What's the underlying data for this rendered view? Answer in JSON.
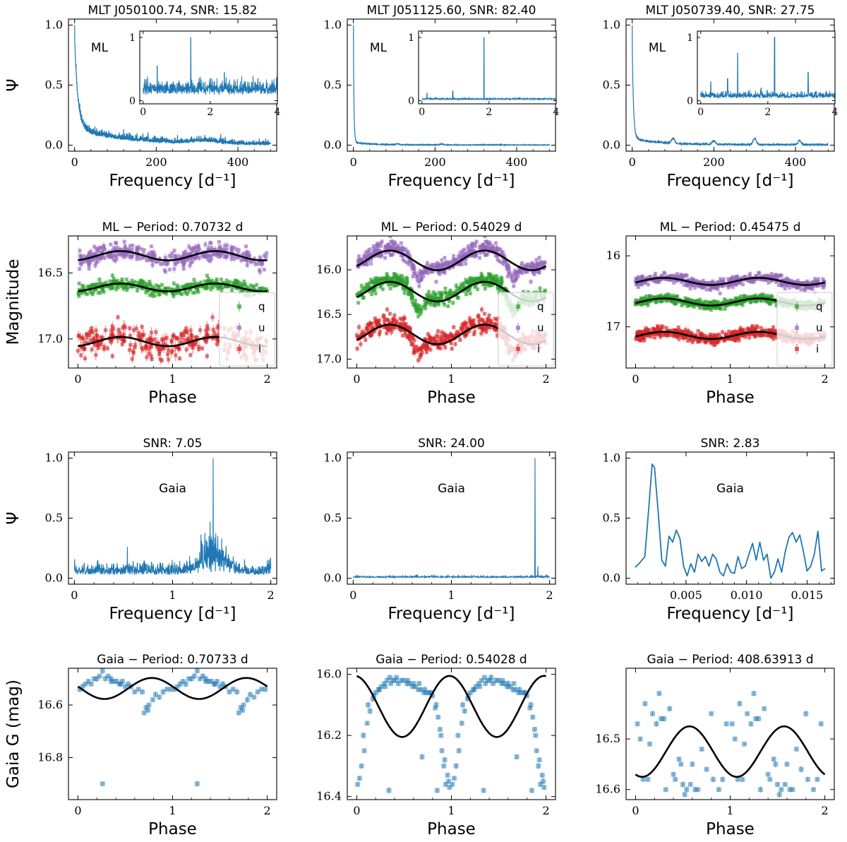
{
  "colors": {
    "blue": "#1f77b4",
    "green": "#2ca02c",
    "purple": "#9467bd",
    "red": "#d62728",
    "fit": "#000000"
  },
  "chart_data": [
    {
      "id": "p00",
      "type": "line",
      "title": "MLT J050100.74, SNR: 15.82",
      "xlabel": "Frequency [d⁻¹]",
      "ylabel": "Ψ",
      "annotation": "ML",
      "xlim": [
        -15,
        495
      ],
      "ylim": [
        -0.05,
        1.05
      ],
      "xticks": [
        0,
        200,
        400
      ],
      "yticks": [
        0.0,
        0.5,
        1.0
      ],
      "ytick_labels": [
        "0.0",
        "0.5",
        "1.0"
      ],
      "profile": {
        "kind": "decay",
        "amp": 0.75,
        "tau": 8,
        "amp2": 0.12,
        "tau2": 120,
        "bumps": [
          [
            320,
            0.02,
            30
          ]
        ],
        "noise": 0.035,
        "xmax": 480
      },
      "inset": {
        "xlim": [
          -0.1,
          4.0
        ],
        "ylim": [
          -0.05,
          1.1
        ],
        "xticks": [
          0,
          2,
          4
        ],
        "yticks": [
          0,
          1
        ],
        "ytick_labels": [
          "0",
          "1"
        ],
        "peaks": [
          [
            0.42,
            0.55
          ],
          [
            1.42,
            1.0
          ],
          [
            2.42,
            0.45
          ],
          [
            3.42,
            0.35
          ],
          [
            0.9,
            0.3
          ],
          [
            2.0,
            0.35
          ]
        ],
        "base": 0.12,
        "noise": 0.18
      }
    },
    {
      "id": "p01",
      "type": "line",
      "title": "MLT J051125.60, SNR: 82.40",
      "xlabel": "Frequency [d⁻¹]",
      "ylabel": "",
      "annotation": "ML",
      "xlim": [
        -15,
        495
      ],
      "ylim": [
        -0.05,
        1.05
      ],
      "xticks": [
        0,
        200,
        400
      ],
      "yticks": [
        0.0,
        0.5,
        1.0
      ],
      "ytick_labels": [
        "0.0",
        "0.5",
        "1.0"
      ],
      "profile": {
        "kind": "decay",
        "amp": 0.82,
        "tau": 1.5,
        "amp2": 0.02,
        "tau2": 40,
        "bumps": [
          [
            108,
            0.008,
            4
          ],
          [
            216,
            0.006,
            4
          ]
        ],
        "noise": 0.004,
        "xmax": 480
      },
      "inset": {
        "xlim": [
          -0.1,
          4.0
        ],
        "ylim": [
          -0.05,
          1.1
        ],
        "xticks": [
          0,
          2,
          4
        ],
        "yticks": [
          0,
          1
        ],
        "ytick_labels": [
          "0",
          "1"
        ],
        "peaks": [
          [
            1.85,
            1.0
          ],
          [
            0.92,
            0.15
          ],
          [
            0.15,
            0.12
          ],
          [
            2.9,
            0.05
          ]
        ],
        "base": 0.02,
        "noise": 0.02
      }
    },
    {
      "id": "p02",
      "type": "line",
      "title": "MLT J050739.40, SNR: 27.75",
      "xlabel": "Frequency [d⁻¹]",
      "ylabel": "",
      "annotation": "ML",
      "xlim": [
        -15,
        495
      ],
      "ylim": [
        -0.05,
        1.05
      ],
      "xticks": [
        0,
        200,
        400
      ],
      "yticks": [
        0.0,
        0.5,
        1.0
      ],
      "ytick_labels": [
        "0.0",
        "0.5",
        "1.0"
      ],
      "profile": {
        "kind": "decay",
        "amp": 0.8,
        "tau": 3,
        "amp2": 0.05,
        "tau2": 60,
        "bumps": [
          [
            100,
            0.04,
            4
          ],
          [
            200,
            0.03,
            4
          ],
          [
            300,
            0.05,
            4
          ],
          [
            410,
            0.03,
            4
          ]
        ],
        "noise": 0.01,
        "xmax": 480
      },
      "inset": {
        "xlim": [
          -0.1,
          4.0
        ],
        "ylim": [
          -0.05,
          1.1
        ],
        "xticks": [
          0,
          2,
          4
        ],
        "yticks": [
          0,
          1
        ],
        "ytick_labels": [
          "0",
          "1"
        ],
        "peaks": [
          [
            2.2,
            1.0
          ],
          [
            1.1,
            0.75
          ],
          [
            3.2,
            0.45
          ],
          [
            0.8,
            0.35
          ],
          [
            0.3,
            0.3
          ],
          [
            1.8,
            0.2
          ]
        ],
        "base": 0.05,
        "noise": 0.08
      }
    },
    {
      "id": "p10",
      "type": "scatter",
      "title": "ML − Period: 0.70732 d",
      "xlabel": "Phase",
      "ylabel": "Magnitude",
      "xlim": [
        -0.1,
        2.1
      ],
      "ylim": [
        17.22,
        16.22
      ],
      "inverted": true,
      "xticks": [
        0,
        1,
        2
      ],
      "yticks": [
        16.5,
        17.0
      ],
      "ytick_labels": [
        "16.5",
        "17.0"
      ],
      "legend": [
        "q",
        "u",
        "i"
      ],
      "legend_loc": "lower right",
      "series": [
        {
          "name": "q",
          "color": "green",
          "mean": 16.61,
          "amp": 0.03,
          "phase0": 0.45,
          "scatter": 0.025,
          "n": 180,
          "err": 0.015
        },
        {
          "name": "u",
          "color": "purple",
          "mean": 16.37,
          "amp": 0.035,
          "phase0": 0.45,
          "scatter": 0.035,
          "n": 180,
          "err": 0.02
        },
        {
          "name": "i",
          "color": "red",
          "mean": 17.02,
          "amp": 0.035,
          "phase0": 0.45,
          "scatter": 0.05,
          "n": 150,
          "err": 0.03
        }
      ]
    },
    {
      "id": "p11",
      "type": "scatter",
      "title": "ML − Period: 0.54029 d",
      "xlabel": "Phase",
      "ylabel": "",
      "xlim": [
        -0.1,
        2.1
      ],
      "ylim": [
        17.1,
        15.62
      ],
      "inverted": true,
      "xticks": [
        0,
        1,
        2
      ],
      "yticks": [
        16.0,
        16.5,
        17.0
      ],
      "ytick_labels": [
        "16.0",
        "16.5",
        "17.0"
      ],
      "legend": [
        "q",
        "u",
        "i"
      ],
      "legend_loc": "lower right",
      "series": [
        {
          "name": "q",
          "color": "green",
          "mean": 16.22,
          "amp": 0.11,
          "phase0": 0.35,
          "scatter": 0.04,
          "n": 260,
          "err": 0.02,
          "dip": 0.2
        },
        {
          "name": "u",
          "color": "purple",
          "mean": 15.87,
          "amp": 0.11,
          "phase0": 0.35,
          "scatter": 0.04,
          "n": 260,
          "err": 0.02,
          "dip": 0.2
        },
        {
          "name": "i",
          "color": "red",
          "mean": 16.7,
          "amp": 0.11,
          "phase0": 0.35,
          "scatter": 0.05,
          "n": 240,
          "err": 0.03,
          "dip": 0.2
        }
      ]
    },
    {
      "id": "p12",
      "type": "scatter",
      "title": "ML − Period: 0.45475 d",
      "xlabel": "Phase",
      "ylabel": "",
      "xlim": [
        -0.1,
        2.1
      ],
      "ylim": [
        17.58,
        15.72
      ],
      "inverted": true,
      "xticks": [
        0,
        1,
        2
      ],
      "yticks": [
        16,
        17
      ],
      "ytick_labels": [
        "16",
        "17"
      ],
      "legend": [
        "q",
        "u",
        "i"
      ],
      "legend_loc": "lower right",
      "series": [
        {
          "name": "q",
          "color": "green",
          "mean": 16.65,
          "amp": 0.05,
          "phase0": 0.3,
          "scatter": 0.03,
          "n": 280,
          "err": 0.02
        },
        {
          "name": "u",
          "color": "purple",
          "mean": 16.36,
          "amp": 0.05,
          "phase0": 0.3,
          "scatter": 0.03,
          "n": 280,
          "err": 0.02
        },
        {
          "name": "i",
          "color": "red",
          "mean": 17.12,
          "amp": 0.05,
          "phase0": 0.3,
          "scatter": 0.04,
          "n": 260,
          "err": 0.03
        }
      ]
    },
    {
      "id": "p20",
      "type": "line",
      "title": "SNR: 7.05",
      "xlabel": "Frequency [d⁻¹]",
      "ylabel": "Ψ",
      "annotation": "Gaia",
      "xlim": [
        -0.06,
        2.06
      ],
      "ylim": [
        -0.05,
        1.05
      ],
      "xticks": [
        0,
        1,
        2
      ],
      "yticks": [
        0.0,
        0.5,
        1.0
      ],
      "ytick_labels": [
        "0.0",
        "0.5",
        "1.0"
      ],
      "profile": {
        "kind": "noisy",
        "xmin": 0,
        "xmax": 2,
        "base": 0.03,
        "noise": 0.08,
        "n": 900,
        "peaks": [
          [
            1.414,
            1.0
          ],
          [
            1.4,
            0.32
          ],
          [
            1.43,
            0.28
          ],
          [
            1.37,
            0.22
          ],
          [
            1.46,
            0.2
          ]
        ],
        "envelope": [
          [
            1.4,
            0.12,
            0.4
          ]
        ]
      }
    },
    {
      "id": "p21",
      "type": "line",
      "title": "SNR: 24.00",
      "xlabel": "Frequency [d⁻¹]",
      "ylabel": "",
      "annotation": "Gaia",
      "xlim": [
        -0.06,
        2.06
      ],
      "ylim": [
        -0.05,
        1.05
      ],
      "xticks": [
        0,
        1,
        2
      ],
      "yticks": [
        0.0,
        0.5,
        1.0
      ],
      "ytick_labels": [
        "0.0",
        "0.5",
        "1.0"
      ],
      "profile": {
        "kind": "noisy",
        "xmin": 0,
        "xmax": 2,
        "base": 0.005,
        "noise": 0.012,
        "n": 700,
        "peaks": [
          [
            1.851,
            1.0
          ],
          [
            1.88,
            0.1
          ],
          [
            1.82,
            0.03
          ]
        ]
      }
    },
    {
      "id": "p22",
      "type": "line",
      "title": "SNR: 2.83",
      "xlabel": "Frequency [d⁻¹]",
      "ylabel": "",
      "annotation": "Gaia",
      "xlim": [
        5e-05,
        0.01725
      ],
      "ylim": [
        -0.05,
        1.05
      ],
      "xticks": [
        0.005,
        0.01,
        0.015
      ],
      "xtick_labels": [
        "0.005",
        "0.010",
        "0.015"
      ],
      "yticks": [
        0.0,
        0.5,
        1.0
      ],
      "ytick_labels": [
        "0.0",
        "0.5",
        "1.0"
      ],
      "x": [
        0.0008,
        0.0012,
        0.0016,
        0.0019,
        0.0022,
        0.0024,
        0.0027,
        0.003,
        0.0033,
        0.0036,
        0.0039,
        0.0042,
        0.0045,
        0.0048,
        0.0051,
        0.0054,
        0.0057,
        0.006,
        0.0063,
        0.0066,
        0.0069,
        0.0072,
        0.0075,
        0.0078,
        0.0081,
        0.0084,
        0.0087,
        0.009,
        0.0093,
        0.0096,
        0.0099,
        0.0102,
        0.0105,
        0.0108,
        0.0111,
        0.0114,
        0.0117,
        0.012,
        0.0123,
        0.0126,
        0.0129,
        0.0132,
        0.0135,
        0.0138,
        0.0141,
        0.0144,
        0.0147,
        0.015,
        0.0153,
        0.0156,
        0.0159,
        0.0162,
        0.0165
      ],
      "y": [
        0.09,
        0.13,
        0.18,
        0.55,
        0.95,
        0.92,
        0.55,
        0.15,
        0.1,
        0.35,
        0.3,
        0.4,
        0.33,
        0.1,
        0.02,
        0.12,
        0.05,
        0.2,
        0.14,
        0.18,
        0.1,
        0.2,
        0.16,
        0.05,
        0.02,
        0.12,
        0.05,
        0.04,
        0.18,
        0.08,
        0.1,
        0.2,
        0.29,
        0.15,
        0.3,
        0.15,
        0.2,
        0.0,
        0.05,
        0.16,
        0.05,
        0.22,
        0.34,
        0.38,
        0.3,
        0.36,
        0.22,
        0.06,
        0.1,
        0.2,
        0.39,
        0.06,
        0.08
      ]
    },
    {
      "id": "p30",
      "type": "scatter",
      "title": "Gaia − Period: 0.70733 d",
      "xlabel": "Phase",
      "ylabel": "Gaia G (mag)",
      "xlim": [
        -0.1,
        2.1
      ],
      "ylim": [
        16.96,
        16.46
      ],
      "inverted": true,
      "xticks": [
        0,
        1,
        2
      ],
      "yticks": [
        16.6,
        16.8
      ],
      "ytick_labels": [
        "16.6",
        "16.8"
      ],
      "fit": {
        "mean": 16.537,
        "amp": 0.04,
        "peak_phase": 0.28
      },
      "phase": [
        0.02,
        0.05,
        0.08,
        0.11,
        0.14,
        0.17,
        0.2,
        0.23,
        0.26,
        0.29,
        0.32,
        0.35,
        0.38,
        0.41,
        0.44,
        0.47,
        0.5,
        0.53,
        0.56,
        0.6,
        0.64,
        0.68,
        0.72,
        0.75,
        0.79,
        0.82,
        0.86,
        0.9,
        0.94,
        0.98,
        0.26,
        0.7,
        0.74,
        0.35,
        0.45
      ],
      "mag": [
        16.54,
        16.53,
        16.52,
        16.51,
        16.52,
        16.5,
        16.5,
        16.49,
        16.47,
        16.5,
        16.49,
        16.5,
        16.51,
        16.51,
        16.52,
        16.51,
        16.53,
        16.52,
        16.53,
        16.55,
        16.54,
        16.55,
        16.61,
        16.6,
        16.58,
        16.56,
        16.57,
        16.55,
        16.54,
        16.54,
        16.9,
        16.63,
        16.62,
        16.51,
        16.52
      ]
    },
    {
      "id": "p31",
      "type": "scatter",
      "title": "Gaia − Period: 0.54028 d",
      "xlabel": "Phase",
      "ylabel": "",
      "xlim": [
        -0.1,
        2.1
      ],
      "ylim": [
        16.41,
        15.98
      ],
      "inverted": true,
      "xticks": [
        0,
        1,
        2
      ],
      "yticks": [
        16.0,
        16.2,
        16.4
      ],
      "ytick_labels": [
        "16.0",
        "16.2",
        "16.4"
      ],
      "fit": {
        "mean": 16.105,
        "amp": 0.1,
        "peak_phase": 0.48
      },
      "phase": [
        0.01,
        0.03,
        0.05,
        0.08,
        0.11,
        0.14,
        0.17,
        0.2,
        0.23,
        0.26,
        0.29,
        0.32,
        0.35,
        0.38,
        0.41,
        0.44,
        0.47,
        0.5,
        0.53,
        0.56,
        0.59,
        0.62,
        0.65,
        0.68,
        0.71,
        0.74,
        0.77,
        0.8,
        0.83,
        0.86,
        0.88,
        0.9,
        0.92,
        0.94,
        0.96,
        0.98,
        0.07,
        0.12,
        0.18,
        0.24,
        0.3,
        0.36,
        0.42,
        0.54,
        0.6,
        0.66,
        0.72,
        0.78,
        0.84,
        0.89,
        0.93,
        0.97,
        0.34,
        0.69,
        0.85
      ],
      "mag": [
        16.36,
        16.34,
        16.3,
        16.25,
        16.16,
        16.12,
        16.08,
        16.06,
        16.05,
        16.04,
        16.03,
        16.02,
        16.01,
        16.02,
        16.02,
        16.03,
        16.02,
        16.02,
        16.03,
        16.03,
        16.04,
        16.04,
        16.05,
        16.05,
        16.06,
        16.06,
        16.06,
        16.07,
        16.11,
        16.14,
        16.18,
        16.25,
        16.3,
        16.36,
        16.33,
        16.37,
        16.2,
        16.1,
        16.07,
        16.05,
        16.04,
        16.03,
        16.01,
        16.02,
        16.03,
        16.03,
        16.05,
        16.06,
        16.1,
        16.2,
        16.28,
        16.35,
        16.38,
        16.27,
        16.38
      ]
    },
    {
      "id": "p32",
      "type": "scatter",
      "title": "Gaia − Period: 408.63913 d",
      "xlabel": "Phase",
      "ylabel": "",
      "xlim": [
        -0.1,
        2.1
      ],
      "ylim": [
        16.62,
        16.36
      ],
      "inverted": true,
      "xticks": [
        0,
        1,
        2
      ],
      "yticks": [
        16.5,
        16.6
      ],
      "ytick_labels": [
        "16.5",
        "16.6"
      ],
      "fit": {
        "mean": 16.525,
        "amp": 0.05,
        "peak_phase": 0.07
      },
      "phase": [
        0.02,
        0.05,
        0.08,
        0.1,
        0.13,
        0.15,
        0.18,
        0.22,
        0.25,
        0.27,
        0.3,
        0.32,
        0.36,
        0.4,
        0.42,
        0.46,
        0.48,
        0.5,
        0.52,
        0.54,
        0.58,
        0.6,
        0.63,
        0.66,
        0.7,
        0.75,
        0.8,
        0.82,
        0.88,
        0.92,
        0.96
      ],
      "mag": [
        16.47,
        16.5,
        16.58,
        16.43,
        16.58,
        16.51,
        16.45,
        16.47,
        16.41,
        16.46,
        16.46,
        16.6,
        16.44,
        16.57,
        16.58,
        16.54,
        16.55,
        16.59,
        16.61,
        16.6,
        16.59,
        16.55,
        16.6,
        16.6,
        16.52,
        16.56,
        16.45,
        16.58,
        16.6,
        16.58,
        16.47
      ]
    }
  ]
}
